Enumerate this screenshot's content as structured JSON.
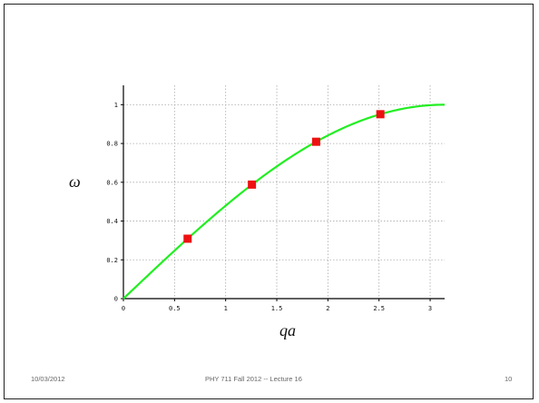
{
  "footer": {
    "date": "10/03/2012",
    "title": "PHY 711  Fall 2012 -- Lecture 16",
    "page": "10"
  },
  "colors": {
    "curve": "#22ee22",
    "markers": "#ee1111",
    "grid": "#aaaaaa",
    "axis": "#000000"
  },
  "chart_data": {
    "type": "line",
    "xlabel": "qa",
    "ylabel": "ω",
    "xlim": [
      0,
      3.14159
    ],
    "ylim": [
      0,
      1.1
    ],
    "grid": true,
    "x_ticks": [
      "0",
      "0.5",
      "1",
      "1.5",
      "2",
      "2.5",
      "3"
    ],
    "y_ticks": [
      "0",
      "0.2",
      "0.4",
      "0.6",
      "0.8",
      "1"
    ],
    "series": [
      {
        "kind": "line",
        "formula": "sin(x/2)",
        "x": [
          0,
          0.2,
          0.4,
          0.6,
          0.8,
          1.0,
          1.2,
          1.4,
          1.6,
          1.8,
          2.0,
          2.2,
          2.4,
          2.6,
          2.8,
          3.0,
          3.14159
        ],
        "y": [
          0,
          0.1,
          0.199,
          0.296,
          0.389,
          0.479,
          0.565,
          0.644,
          0.717,
          0.783,
          0.841,
          0.891,
          0.932,
          0.964,
          0.985,
          0.997,
          1.0
        ]
      },
      {
        "kind": "markers",
        "x": [
          0.628,
          1.257,
          1.885,
          2.513
        ],
        "y": [
          0.309,
          0.588,
          0.809,
          0.951
        ]
      }
    ]
  }
}
